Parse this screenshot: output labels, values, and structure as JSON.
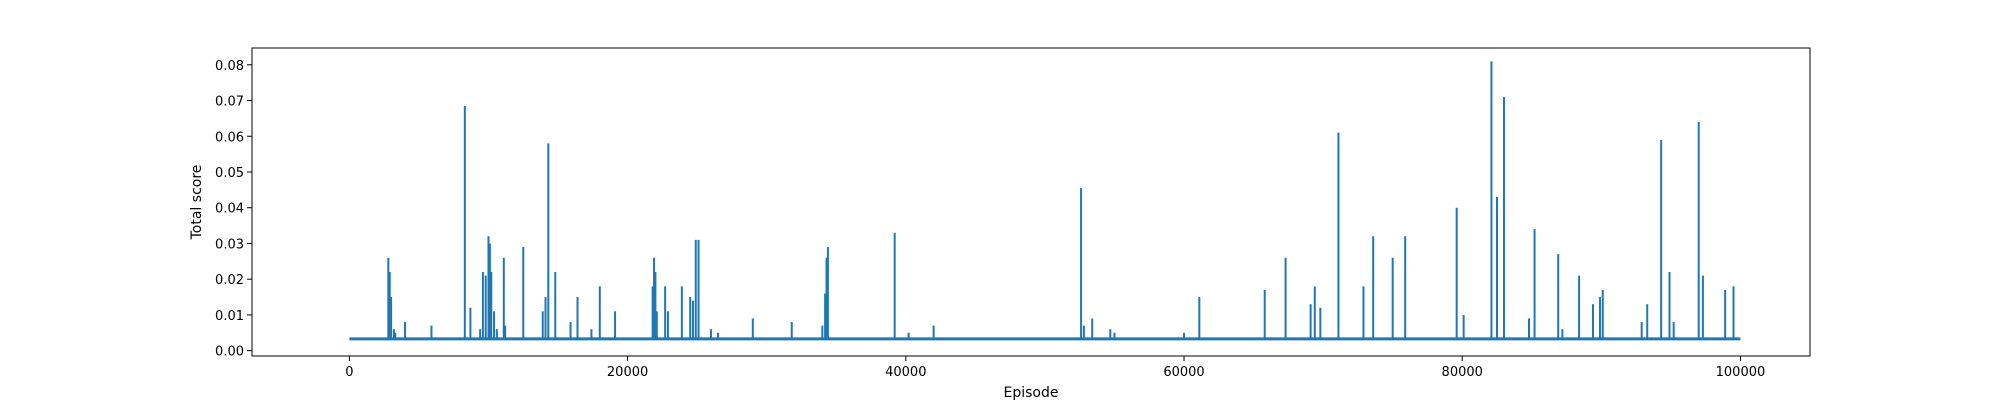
{
  "chart_data": {
    "type": "line",
    "title": "",
    "xlabel": "Episode",
    "ylabel": "Total score",
    "xlim": [
      -7000,
      105000
    ],
    "ylim": [
      -0.0015,
      0.0847
    ],
    "xticks": [
      0,
      20000,
      40000,
      60000,
      80000,
      100000
    ],
    "xtick_labels": [
      "0",
      "20000",
      "40000",
      "60000",
      "80000",
      "100000"
    ],
    "yticks": [
      0.0,
      0.01,
      0.02,
      0.03,
      0.04,
      0.05,
      0.06,
      0.07,
      0.08
    ],
    "ytick_labels": [
      "0.00",
      "0.01",
      "0.02",
      "0.03",
      "0.04",
      "0.05",
      "0.06",
      "0.07",
      "0.08"
    ],
    "grid": false,
    "legend": "none",
    "line_color": "#1f77b4",
    "baseline": 0.0033,
    "x_max": 100000,
    "series": [
      {
        "x": [
          2800,
          2900,
          3000,
          3200,
          3300,
          4000,
          5900,
          8300,
          8700,
          9400,
          9600,
          9800,
          10000,
          10100,
          10200,
          10400,
          10600,
          11100,
          11200,
          12500,
          13900,
          14100,
          14300,
          14800,
          15900,
          16400,
          17400,
          18000,
          19100,
          21800,
          21900,
          22000,
          22100,
          22700,
          22900,
          23900,
          24500,
          24700,
          24900,
          25100,
          26000,
          26500,
          29000,
          31800,
          34000,
          34200,
          34300,
          34400,
          39200,
          40200,
          42000,
          52600,
          52800,
          53400,
          54700,
          55000,
          60000,
          61100,
          65800,
          67300,
          69100,
          69400,
          69800,
          71100,
          72900,
          73600,
          75000,
          75900,
          79600,
          80100,
          82100,
          82500,
          83000,
          84800,
          85200,
          86900,
          87200,
          88400,
          89400,
          89900,
          90100,
          92900,
          93300,
          94300,
          94900,
          95200,
          97000,
          97300,
          98900,
          99500
        ],
        "y": [
          0.026,
          0.022,
          0.015,
          0.006,
          0.005,
          0.008,
          0.007,
          0.0685,
          0.012,
          0.006,
          0.022,
          0.021,
          0.032,
          0.03,
          0.022,
          0.011,
          0.006,
          0.026,
          0.007,
          0.029,
          0.011,
          0.015,
          0.058,
          0.022,
          0.008,
          0.015,
          0.006,
          0.018,
          0.011,
          0.018,
          0.026,
          0.022,
          0.011,
          0.018,
          0.011,
          0.018,
          0.015,
          0.014,
          0.031,
          0.031,
          0.006,
          0.005,
          0.009,
          0.008,
          0.007,
          0.016,
          0.026,
          0.029,
          0.033,
          0.005,
          0.007,
          0.0455,
          0.007,
          0.009,
          0.006,
          0.005,
          0.005,
          0.015,
          0.017,
          0.026,
          0.013,
          0.018,
          0.012,
          0.061,
          0.018,
          0.032,
          0.026,
          0.032,
          0.04,
          0.01,
          0.081,
          0.043,
          0.071,
          0.009,
          0.034,
          0.027,
          0.006,
          0.021,
          0.013,
          0.015,
          0.017,
          0.008,
          0.013,
          0.059,
          0.022,
          0.008,
          0.064,
          0.021,
          0.017,
          0.018
        ]
      }
    ]
  }
}
